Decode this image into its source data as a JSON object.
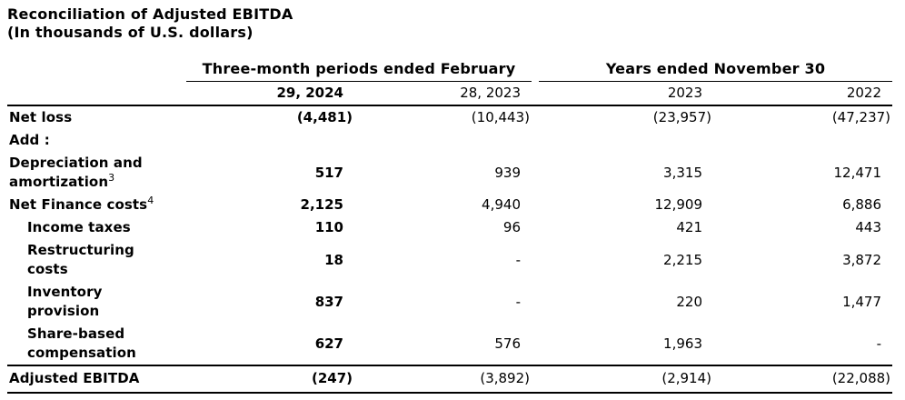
{
  "title": {
    "line1": "Reconciliation of Adjusted EBITDA",
    "line2": "(In thousands of U.S. dollars)"
  },
  "header": {
    "group1": "Three-month periods ended February",
    "group2": "Years ended November 30",
    "columns": [
      "29, 2024",
      "28, 2023",
      "2023",
      "2022"
    ]
  },
  "rows": [
    {
      "label": "Net loss",
      "sup": "",
      "values": [
        "(4,481)",
        "(10,443)",
        "(23,957)",
        "(47,237)"
      ]
    },
    {
      "label": "Add :",
      "sup": "",
      "values": [
        "",
        "",
        "",
        ""
      ]
    },
    {
      "label": "Depreciation and\namortization",
      "sup": "3",
      "values": [
        "517",
        "939",
        "3,315",
        "12,471"
      ]
    },
    {
      "label": "Net Finance costs",
      "sup": "4",
      "values": [
        "2,125",
        "4,940",
        "12,909",
        "6,886"
      ]
    },
    {
      "label": "Income taxes",
      "sup": "",
      "values": [
        "110",
        "96",
        "421",
        "443"
      ]
    },
    {
      "label": "Restructuring\ncosts",
      "sup": "",
      "values": [
        "18",
        "-",
        "2,215",
        "3,872"
      ]
    },
    {
      "label": "Inventory\nprovision",
      "sup": "",
      "values": [
        "837",
        "-",
        "220",
        "1,477"
      ]
    },
    {
      "label": "Share-based\ncompensation",
      "sup": "",
      "values": [
        "627",
        "576",
        "1,963",
        "-"
      ]
    },
    {
      "label": "Adjusted EBITDA",
      "sup": "",
      "values": [
        "(247)",
        "(3,892)",
        "(2,914)",
        "(22,088)"
      ]
    }
  ]
}
